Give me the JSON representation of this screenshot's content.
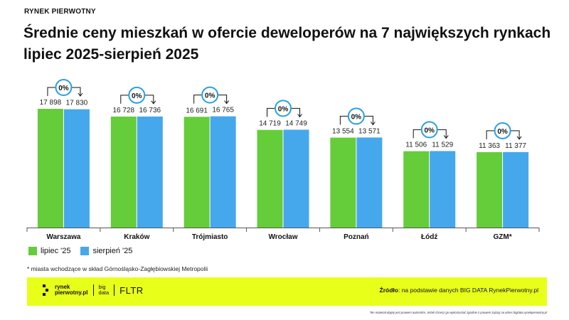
{
  "header": {
    "brand_label": "RYNEK PIERWOTNY",
    "title_line1": "Średnie ceny mieszkań w ofercie deweloperów na 7 największych rynkach",
    "title_line2": "lipiec 2025-sierpień 2025"
  },
  "chart_data": {
    "type": "bar",
    "title": "Średnie ceny mieszkań w ofercie deweloperów na 7 największych rynkach",
    "subtitle": "lipiec 2025-sierpień 2025",
    "categories": [
      "Warszawa",
      "Kraków",
      "Trójmiasto",
      "Wrocław",
      "Poznań",
      "Łódź",
      "GZM*"
    ],
    "series": [
      {
        "name": "lipiec '25",
        "color": "#65cc3a",
        "values": [
          17898,
          16728,
          16691,
          14719,
          13554,
          11506,
          11363
        ],
        "labels": [
          "17 898",
          "16 728",
          "16 691",
          "14 719",
          "13 554",
          "11 506",
          "11 363"
        ]
      },
      {
        "name": "sierpień '25",
        "color": "#45a8ec",
        "values": [
          17830,
          16736,
          16765,
          14749,
          13571,
          11529,
          11377
        ],
        "labels": [
          "17 830",
          "16 736",
          "16 765",
          "14 749",
          "13 571",
          "11 529",
          "11 377"
        ]
      }
    ],
    "change_labels": [
      "0%",
      "0%",
      "0%",
      "0%",
      "0%",
      "0%",
      "0%"
    ],
    "ylim": [
      0,
      18000
    ],
    "grid": false,
    "xlabel": "",
    "ylabel": ""
  },
  "legend": {
    "items": [
      {
        "label": "lipiec '25",
        "color": "#65cc3a"
      },
      {
        "label": "sierpień '25",
        "color": "#45a8ec"
      }
    ]
  },
  "footnote": "* miasta wchodzące w skład Górnośląsko-Zagłębiowskiej Metropolii",
  "footer": {
    "logo_line1": "rynek",
    "logo_line2": "pierwotny.pl",
    "logo_bd1": "big",
    "logo_bd2": "data",
    "logo_fltr": "FLTR",
    "source_label": "Źródło",
    "source_text": ": na podstawie danych BIG DATA RynekPierwotny.pl",
    "disclaimer": "Ten materiał objęty jest prawem autorskim. Jeżeli chcesz go wykorzystać zgodnie z prawem zajrzyj na adres bigdata.rynekpierwotny.pl"
  },
  "colors": {
    "accent": "#e8ff1a",
    "badge_border": "#2a9fe0"
  }
}
